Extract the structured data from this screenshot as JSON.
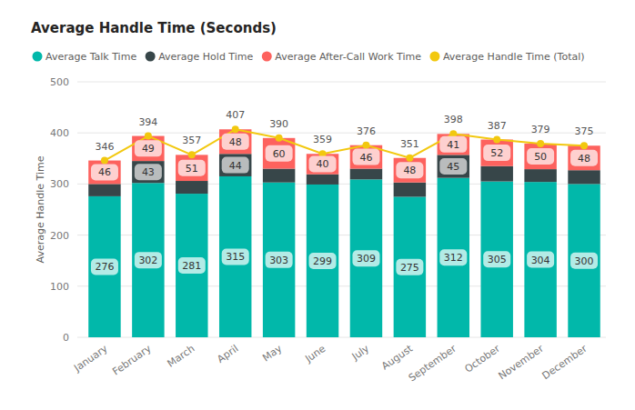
{
  "chart_data": {
    "type": "bar",
    "title": "Average Handle Time (Seconds)",
    "y_label": "Average Handle Time",
    "stacked": true,
    "grid": true,
    "legend": "top",
    "data_labels": true,
    "categories": [
      "January",
      "February",
      "March",
      "April",
      "May",
      "June",
      "July",
      "August",
      "September",
      "October",
      "November",
      "December"
    ],
    "ylim": [
      0,
      500
    ],
    "yticks": [
      0,
      100,
      200,
      300,
      400,
      500
    ],
    "series": [
      {
        "name": "Average Talk Time",
        "type": "bar",
        "color": "#01b8aa",
        "data_labels": true,
        "values": [
          276,
          302,
          281,
          315,
          303,
          299,
          309,
          275,
          312,
          305,
          304,
          300
        ]
      },
      {
        "name": "Average Hold Time",
        "type": "bar",
        "color": "#374649",
        "data_labels": true,
        "values": [
          24,
          43,
          25,
          44,
          27,
          20,
          21,
          28,
          45,
          30,
          25,
          27
        ],
        "value_labels": [
          null,
          "43",
          null,
          "44",
          null,
          null,
          null,
          null,
          "45",
          null,
          null,
          null
        ]
      },
      {
        "name": "Average After-Call Work Time",
        "type": "bar",
        "color": "#fd625e",
        "data_labels": true,
        "values": [
          46,
          49,
          51,
          48,
          60,
          40,
          46,
          48,
          41,
          52,
          50,
          48
        ]
      },
      {
        "name": "Average Handle Time (Total)",
        "type": "line",
        "color": "#f2c80f",
        "marker": "circle",
        "data_labels": true,
        "values": [
          346,
          394,
          357,
          407,
          390,
          359,
          376,
          351,
          398,
          387,
          379,
          375
        ]
      }
    ]
  }
}
